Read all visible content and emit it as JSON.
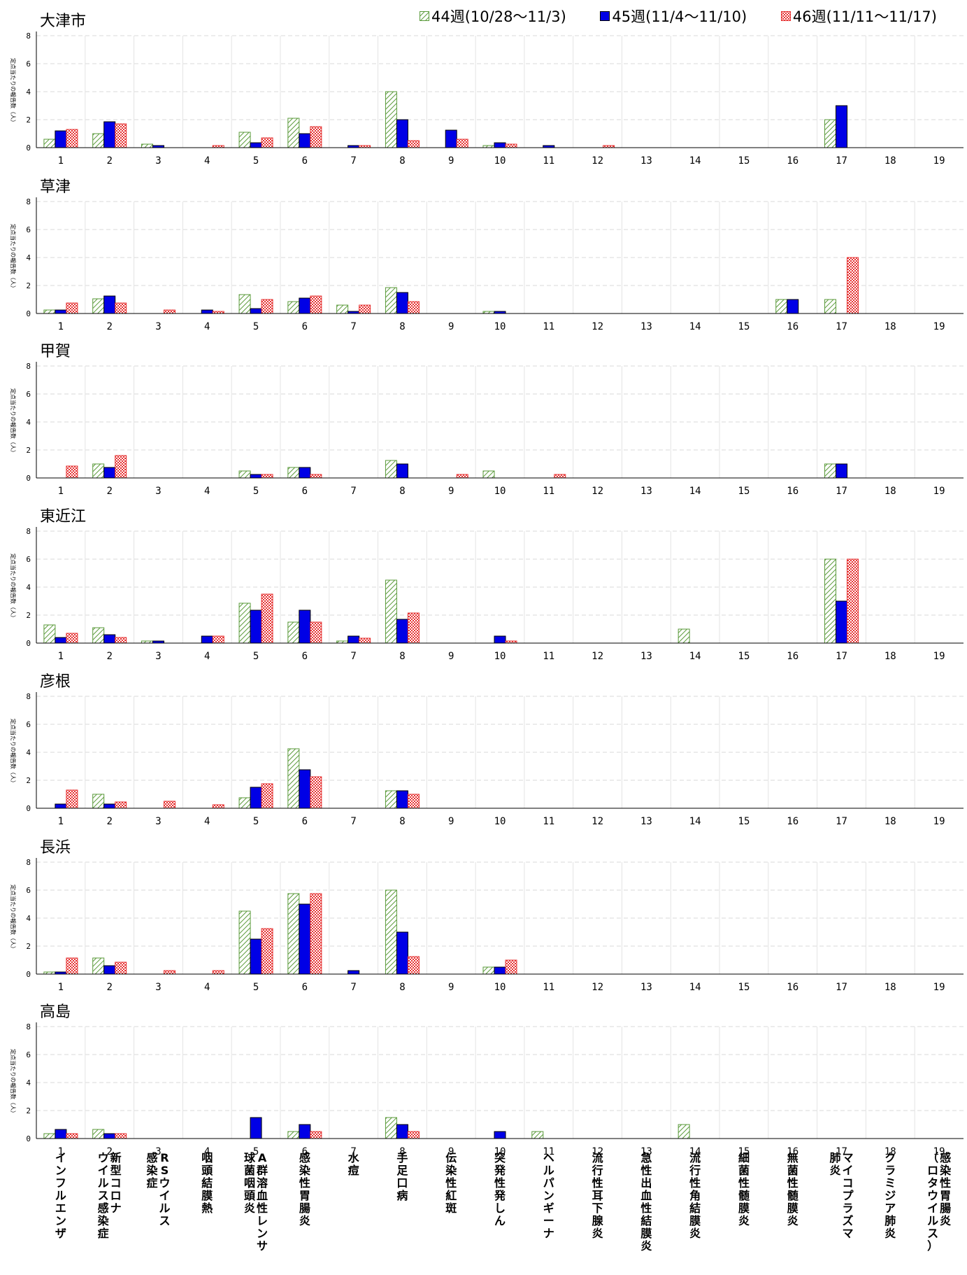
{
  "legend": {
    "w44": "44週(10/28～11/3)",
    "w45": "45週(11/4～11/10)",
    "w46": "46週(11/11～11/17)"
  },
  "y_axis_title": "定点当たりの報告数（人）",
  "colors": {
    "w44": "#5a9a3a",
    "w45": "#0000e6",
    "w46": "#e63232",
    "grid": "#d9d9d9"
  },
  "chart_data": [
    {
      "type": "bar",
      "title": "大津市",
      "ylabel": "定点当たりの報告数（人）",
      "ylim": [
        0,
        8
      ],
      "yticks": [
        0,
        2,
        4,
        6,
        8
      ],
      "categories": [
        "1",
        "2",
        "3",
        "4",
        "5",
        "6",
        "7",
        "8",
        "9",
        "10",
        "11",
        "12",
        "13",
        "14",
        "15",
        "16",
        "17",
        "18",
        "19"
      ],
      "series": [
        {
          "name": "44週(10/28～11/3)",
          "values": [
            0.6,
            1.0,
            0.25,
            0,
            1.1,
            2.1,
            0,
            4.0,
            0,
            0.15,
            0,
            0,
            0,
            0,
            0,
            0,
            2.0,
            0,
            0
          ]
        },
        {
          "name": "45週(11/4～11/10)",
          "values": [
            1.2,
            1.85,
            0.15,
            0,
            0.35,
            1.0,
            0.15,
            2.0,
            1.25,
            0.35,
            0.15,
            0,
            0,
            0,
            0,
            0,
            3.0,
            0,
            0
          ]
        },
        {
          "name": "46週(11/11～11/17)",
          "values": [
            1.3,
            1.7,
            0,
            0.15,
            0.7,
            1.5,
            0.15,
            0.5,
            0.6,
            0.25,
            0,
            0.15,
            0,
            0,
            0,
            0,
            0,
            0,
            0
          ]
        }
      ]
    },
    {
      "type": "bar",
      "title": "草津",
      "ylabel": "定点当たりの報告数（人）",
      "ylim": [
        0,
        8
      ],
      "yticks": [
        0,
        2,
        4,
        6,
        8
      ],
      "categories": [
        "1",
        "2",
        "3",
        "4",
        "5",
        "6",
        "7",
        "8",
        "9",
        "10",
        "11",
        "12",
        "13",
        "14",
        "15",
        "16",
        "17",
        "18",
        "19"
      ],
      "series": [
        {
          "name": "44週(10/28～11/3)",
          "values": [
            0.25,
            1.05,
            0,
            0,
            1.35,
            0.85,
            0.6,
            1.85,
            0,
            0.15,
            0,
            0,
            0,
            0,
            0,
            1.0,
            1.0,
            0,
            0
          ]
        },
        {
          "name": "45週(11/4～11/10)",
          "values": [
            0.25,
            1.25,
            0,
            0.25,
            0.35,
            1.1,
            0.15,
            1.5,
            0,
            0.15,
            0,
            0,
            0,
            0,
            0,
            1.0,
            0,
            0,
            0
          ]
        },
        {
          "name": "46週(11/11～11/17)",
          "values": [
            0.75,
            0.75,
            0.25,
            0.15,
            1.0,
            1.25,
            0.6,
            0.85,
            0,
            0,
            0,
            0,
            0,
            0,
            0,
            0,
            4.0,
            0,
            0
          ]
        }
      ]
    },
    {
      "type": "bar",
      "title": "甲賀",
      "ylabel": "定点当たりの報告数（人）",
      "ylim": [
        0,
        8
      ],
      "yticks": [
        0,
        2,
        4,
        6,
        8
      ],
      "categories": [
        "1",
        "2",
        "3",
        "4",
        "5",
        "6",
        "7",
        "8",
        "9",
        "10",
        "11",
        "12",
        "13",
        "14",
        "15",
        "16",
        "17",
        "18",
        "19"
      ],
      "series": [
        {
          "name": "44週(10/28～11/3)",
          "values": [
            0,
            1.0,
            0,
            0,
            0.5,
            0.75,
            0,
            1.25,
            0,
            0.5,
            0,
            0,
            0,
            0,
            0,
            0,
            1.0,
            0,
            0
          ]
        },
        {
          "name": "45週(11/4～11/10)",
          "values": [
            0,
            0.75,
            0,
            0,
            0.25,
            0.75,
            0,
            1.0,
            0,
            0,
            0,
            0,
            0,
            0,
            0,
            0,
            1.0,
            0,
            0
          ]
        },
        {
          "name": "46週(11/11～11/17)",
          "values": [
            0.85,
            1.6,
            0,
            0,
            0.25,
            0.25,
            0,
            0,
            0.25,
            0,
            0.25,
            0,
            0,
            0,
            0,
            0,
            0,
            0,
            0
          ]
        }
      ]
    },
    {
      "type": "bar",
      "title": "東近江",
      "ylabel": "定点当たりの報告数（人）",
      "ylim": [
        0,
        8
      ],
      "yticks": [
        0,
        2,
        4,
        6,
        8
      ],
      "categories": [
        "1",
        "2",
        "3",
        "4",
        "5",
        "6",
        "7",
        "8",
        "9",
        "10",
        "11",
        "12",
        "13",
        "14",
        "15",
        "16",
        "17",
        "18",
        "19"
      ],
      "series": [
        {
          "name": "44週(10/28～11/3)",
          "values": [
            1.3,
            1.1,
            0.15,
            0,
            2.85,
            1.5,
            0.15,
            4.5,
            0,
            0,
            0,
            0,
            0,
            1.0,
            0,
            0,
            6.0,
            0,
            0
          ]
        },
        {
          "name": "45週(11/4～11/10)",
          "values": [
            0.4,
            0.6,
            0.15,
            0.5,
            2.35,
            2.35,
            0.5,
            1.7,
            0,
            0.5,
            0,
            0,
            0,
            0,
            0,
            0,
            3.0,
            0,
            0
          ]
        },
        {
          "name": "46週(11/11～11/17)",
          "values": [
            0.7,
            0.4,
            0,
            0.5,
            3.5,
            1.5,
            0.35,
            2.15,
            0,
            0.15,
            0,
            0,
            0,
            0,
            0,
            0,
            6.0,
            0,
            0
          ]
        }
      ]
    },
    {
      "type": "bar",
      "title": "彦根",
      "ylabel": "定点当たりの報告数（人）",
      "ylim": [
        0,
        8
      ],
      "yticks": [
        0,
        2,
        4,
        6,
        8
      ],
      "categories": [
        "1",
        "2",
        "3",
        "4",
        "5",
        "6",
        "7",
        "8",
        "9",
        "10",
        "11",
        "12",
        "13",
        "14",
        "15",
        "16",
        "17",
        "18",
        "19"
      ],
      "series": [
        {
          "name": "44週(10/28～11/3)",
          "values": [
            0,
            1.0,
            0,
            0,
            0.75,
            4.25,
            0,
            1.25,
            0,
            0,
            0,
            0,
            0,
            0,
            0,
            0,
            0,
            0,
            0
          ]
        },
        {
          "name": "45週(11/4～11/10)",
          "values": [
            0.3,
            0.3,
            0,
            0,
            1.5,
            2.75,
            0,
            1.25,
            0,
            0,
            0,
            0,
            0,
            0,
            0,
            0,
            0,
            0,
            0
          ]
        },
        {
          "name": "46週(11/11～11/17)",
          "values": [
            1.3,
            0.45,
            0.5,
            0.25,
            1.75,
            2.25,
            0,
            1.0,
            0,
            0,
            0,
            0,
            0,
            0,
            0,
            0,
            0,
            0,
            0
          ]
        }
      ]
    },
    {
      "type": "bar",
      "title": "長浜",
      "ylabel": "定点当たりの報告数（人）",
      "ylim": [
        0,
        8
      ],
      "yticks": [
        0,
        2,
        4,
        6,
        8
      ],
      "categories": [
        "1",
        "2",
        "3",
        "4",
        "5",
        "6",
        "7",
        "8",
        "9",
        "10",
        "11",
        "12",
        "13",
        "14",
        "15",
        "16",
        "17",
        "18",
        "19"
      ],
      "series": [
        {
          "name": "44週(10/28～11/3)",
          "values": [
            0.15,
            1.15,
            0,
            0,
            4.5,
            5.75,
            0,
            6.0,
            0,
            0.5,
            0,
            0,
            0,
            0,
            0,
            0,
            0,
            0,
            0
          ]
        },
        {
          "name": "45週(11/4～11/10)",
          "values": [
            0.15,
            0.6,
            0,
            0,
            2.5,
            5.0,
            0.25,
            3.0,
            0,
            0.5,
            0,
            0,
            0,
            0,
            0,
            0,
            0,
            0,
            0
          ]
        },
        {
          "name": "46週(11/11～11/17)",
          "values": [
            1.15,
            0.85,
            0.25,
            0.25,
            3.25,
            5.75,
            0,
            1.25,
            0,
            1.0,
            0,
            0,
            0,
            0,
            0,
            0,
            0,
            0,
            0
          ]
        }
      ]
    },
    {
      "type": "bar",
      "title": "高島",
      "ylabel": "定点当たりの報告数（人）",
      "ylim": [
        0,
        8
      ],
      "yticks": [
        0,
        2,
        4,
        6,
        8
      ],
      "categories": [
        "1",
        "2",
        "3",
        "4",
        "5",
        "6",
        "7",
        "8",
        "9",
        "10",
        "11",
        "12",
        "13",
        "14",
        "15",
        "16",
        "17",
        "18",
        "19"
      ],
      "series": [
        {
          "name": "44週(10/28～11/3)",
          "values": [
            0.35,
            0.65,
            0,
            0,
            0,
            0.5,
            0,
            1.5,
            0,
            0,
            0.5,
            0,
            0,
            1.0,
            0,
            0,
            0,
            0,
            0
          ]
        },
        {
          "name": "45週(11/4～11/10)",
          "values": [
            0.65,
            0.35,
            0,
            0,
            1.5,
            1.0,
            0,
            1.0,
            0,
            0.5,
            0,
            0,
            0,
            0,
            0,
            0,
            0,
            0,
            0
          ]
        },
        {
          "name": "46週(11/11～11/17)",
          "values": [
            0.35,
            0.35,
            0,
            0,
            0,
            0.5,
            0,
            0.5,
            0,
            0,
            0,
            0,
            0,
            0,
            0,
            0,
            0,
            0,
            0
          ]
        }
      ]
    }
  ],
  "disease_labels": [
    [
      "インフルエンザ"
    ],
    [
      "新型コロナ",
      "ウイルス感染症"
    ],
    [
      "RSウイルス",
      "感染症"
    ],
    [
      "咽頭結膜熱"
    ],
    [
      "A群溶血性レンサ",
      "球菌咽頭炎"
    ],
    [
      "感染性胃腸炎"
    ],
    [
      "水痘"
    ],
    [
      "手足口病"
    ],
    [
      "伝染性紅斑"
    ],
    [
      "突発性発しん"
    ],
    [
      "ヘルパンギーナ"
    ],
    [
      "流行性耳下腺炎"
    ],
    [
      "急性出血性結膜炎"
    ],
    [
      "流行性角結膜炎"
    ],
    [
      "細菌性髄膜炎"
    ],
    [
      "無菌性髄膜炎"
    ],
    [
      "マイコプラズマ",
      "肺炎"
    ],
    [
      "クラミジア肺炎"
    ],
    [
      "感染性胃腸炎",
      "（ロタウイルス）"
    ]
  ]
}
